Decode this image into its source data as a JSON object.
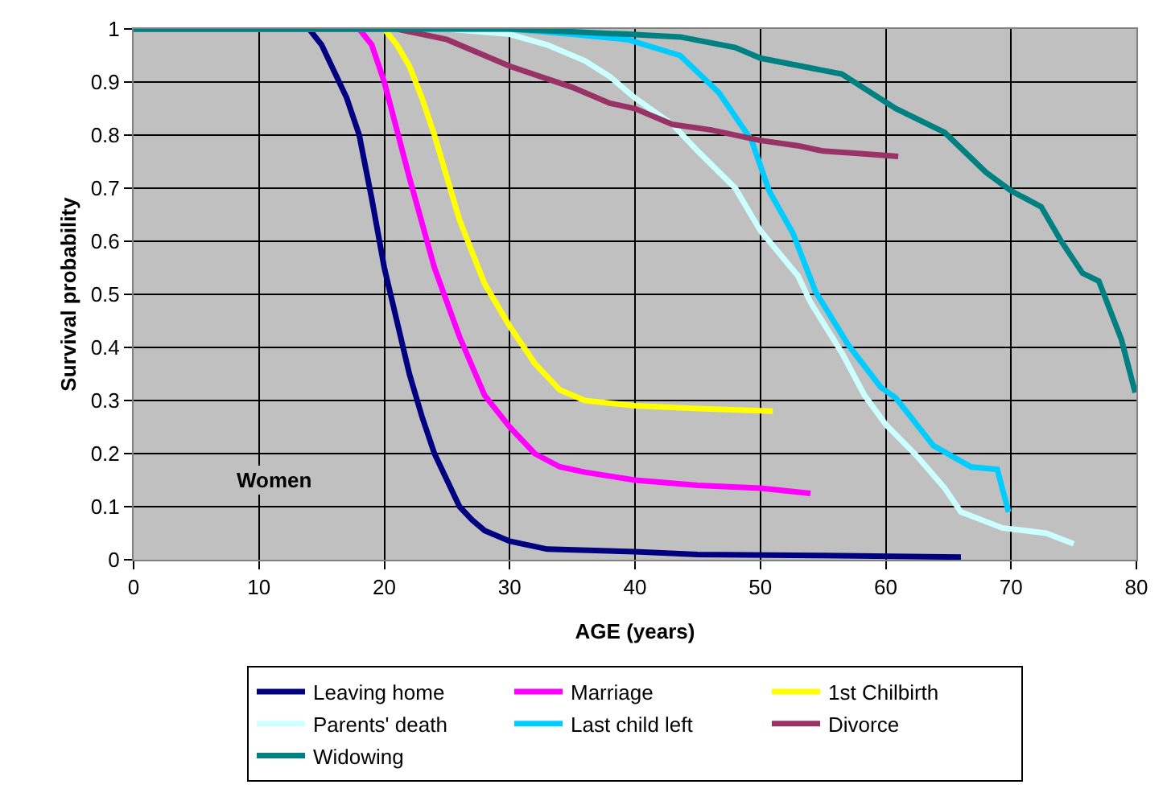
{
  "chart_data": {
    "type": "line",
    "xlabel": "AGE (years)",
    "ylabel": "Survival probability",
    "xlim": [
      0,
      80
    ],
    "xticks": [
      0,
      10,
      20,
      30,
      40,
      50,
      60,
      70,
      80
    ],
    "ylim": [
      0,
      1
    ],
    "yticks": [
      0,
      0.1,
      0.2,
      0.3,
      0.4,
      0.5,
      0.6,
      0.7,
      0.8,
      0.9,
      1
    ],
    "grid": true,
    "legend": "bottom",
    "marker": "none",
    "line_style": "solid",
    "annotations": [
      "Women"
    ],
    "series": [
      {
        "name": "Leaving home",
        "color": "#000080",
        "x": [
          0,
          14,
          15,
          16,
          17,
          18,
          19,
          20,
          21,
          22,
          23,
          24,
          25,
          26,
          27,
          28,
          30,
          33,
          40,
          45,
          55,
          66
        ],
        "values": [
          1,
          1,
          0.97,
          0.92,
          0.87,
          0.8,
          0.68,
          0.55,
          0.45,
          0.35,
          0.27,
          0.2,
          0.15,
          0.1,
          0.075,
          0.055,
          0.035,
          0.02,
          0.015,
          0.01,
          0.008,
          0.005
        ]
      },
      {
        "name": "Marriage",
        "color": "#ff00ff",
        "x": [
          0,
          18,
          19,
          20,
          21,
          22,
          24,
          26,
          28,
          30,
          32,
          34,
          36,
          40,
          45,
          50,
          54
        ],
        "values": [
          1,
          1,
          0.97,
          0.9,
          0.81,
          0.72,
          0.55,
          0.42,
          0.31,
          0.25,
          0.2,
          0.175,
          0.165,
          0.15,
          0.14,
          0.135,
          0.125
        ]
      },
      {
        "name": "1st Chilbirth",
        "color": "#ffff00",
        "x": [
          0,
          20,
          21,
          22,
          23,
          24,
          25,
          26,
          27,
          28,
          30,
          32,
          34,
          36,
          40,
          45,
          51
        ],
        "values": [
          1,
          1,
          0.97,
          0.93,
          0.87,
          0.8,
          0.72,
          0.64,
          0.58,
          0.52,
          0.44,
          0.37,
          0.32,
          0.3,
          0.29,
          0.285,
          0.28
        ]
      },
      {
        "name": "Parents' death",
        "color": "#ccffff",
        "x": [
          0,
          25,
          30,
          33,
          36,
          38,
          40,
          43,
          45,
          48,
          50,
          53,
          54,
          56.5,
          58.3,
          60,
          62.5,
          64.7,
          66,
          69.3,
          72.8,
          75
        ],
        "values": [
          1,
          1,
          0.99,
          0.97,
          0.94,
          0.91,
          0.87,
          0.82,
          0.77,
          0.7,
          0.62,
          0.535,
          0.485,
          0.39,
          0.31,
          0.255,
          0.195,
          0.135,
          0.09,
          0.06,
          0.05,
          0.03
        ]
      },
      {
        "name": "Last child left",
        "color": "#00ccff",
        "x": [
          0,
          30,
          35,
          39.4,
          43.6,
          46.7,
          49.3,
          50.7,
          52.6,
          54.4,
          57,
          59.6,
          60.8,
          63.8,
          66.8,
          68.9,
          69.8
        ],
        "values": [
          1,
          1,
          0.99,
          0.98,
          0.95,
          0.88,
          0.79,
          0.695,
          0.615,
          0.505,
          0.405,
          0.325,
          0.305,
          0.215,
          0.175,
          0.17,
          0.09
        ]
      },
      {
        "name": "Divorce",
        "color": "#993366",
        "x": [
          0,
          21,
          25,
          28,
          30,
          35,
          38,
          40,
          43,
          46,
          50,
          53,
          55,
          58,
          61
        ],
        "values": [
          1,
          1,
          0.98,
          0.95,
          0.93,
          0.89,
          0.86,
          0.85,
          0.82,
          0.81,
          0.79,
          0.78,
          0.77,
          0.765,
          0.76
        ]
      },
      {
        "name": "Widowing",
        "color": "#008080",
        "x": [
          0,
          30,
          39.4,
          43.6,
          48,
          50,
          56.5,
          60.8,
          64.7,
          68,
          70,
          72.4,
          74,
          75.7,
          77,
          78.8,
          79.9
        ],
        "values": [
          1,
          1,
          0.99,
          0.985,
          0.965,
          0.945,
          0.915,
          0.85,
          0.805,
          0.73,
          0.695,
          0.665,
          0.6,
          0.54,
          0.525,
          0.415,
          0.315
        ]
      }
    ]
  }
}
